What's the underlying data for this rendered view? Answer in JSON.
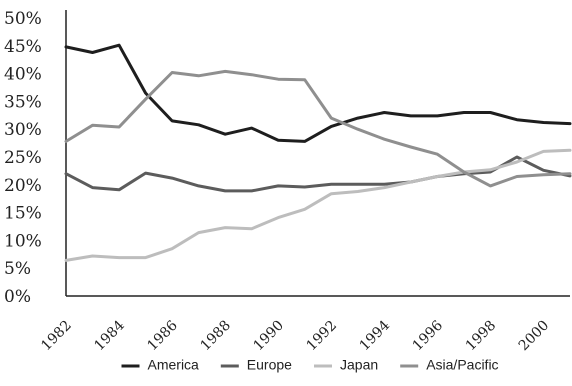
{
  "chart_data": {
    "type": "line",
    "x": [
      1982,
      1983,
      1984,
      1985,
      1986,
      1987,
      1988,
      1989,
      1990,
      1991,
      1992,
      1993,
      1994,
      1995,
      1996,
      1997,
      1998,
      1999,
      2000,
      2001
    ],
    "x_tick_labels": [
      "1982",
      "1984",
      "1986",
      "1988",
      "1990",
      "1992",
      "1994",
      "1996",
      "1998",
      "2000"
    ],
    "y_tick_labels": [
      "0%",
      "5%",
      "10%",
      "15%",
      "20%",
      "25%",
      "30%",
      "35%",
      "40%",
      "45%",
      "50%"
    ],
    "ylim": [
      0,
      50
    ],
    "xlim": [
      1982,
      2001
    ],
    "grid": false,
    "legend_position": "bottom",
    "series": [
      {
        "name": "America",
        "color": "#1e1e1e",
        "values": [
          44.8,
          43.8,
          45.1,
          36.5,
          31.5,
          30.8,
          29.1,
          30.2,
          28.0,
          27.8,
          30.5,
          32.0,
          33.0,
          32.4,
          32.4,
          33.0,
          33.0,
          31.7,
          31.2,
          31.0
        ]
      },
      {
        "name": "Europe",
        "color": "#5c5c5c",
        "values": [
          22.0,
          19.5,
          19.1,
          22.1,
          21.2,
          19.8,
          18.9,
          18.9,
          19.8,
          19.6,
          20.1,
          20.1,
          20.1,
          20.5,
          21.5,
          22.0,
          22.3,
          25.0,
          22.6,
          21.6
        ]
      },
      {
        "name": "Japan",
        "color": "#bdbdbd",
        "values": [
          6.4,
          7.2,
          6.9,
          6.9,
          8.5,
          11.4,
          12.3,
          12.1,
          14.1,
          15.6,
          18.4,
          18.8,
          19.5,
          20.5,
          21.5,
          22.3,
          22.7,
          24.1,
          26.0,
          26.2
        ]
      },
      {
        "name": "Asia/Pacific",
        "color": "#8f8f8f",
        "values": [
          27.8,
          30.7,
          30.4,
          35.4,
          40.2,
          39.6,
          40.4,
          39.8,
          39.0,
          38.9,
          32.0,
          30.0,
          28.2,
          26.8,
          25.5,
          22.3,
          19.8,
          21.5,
          21.8,
          22.0
        ]
      }
    ]
  }
}
